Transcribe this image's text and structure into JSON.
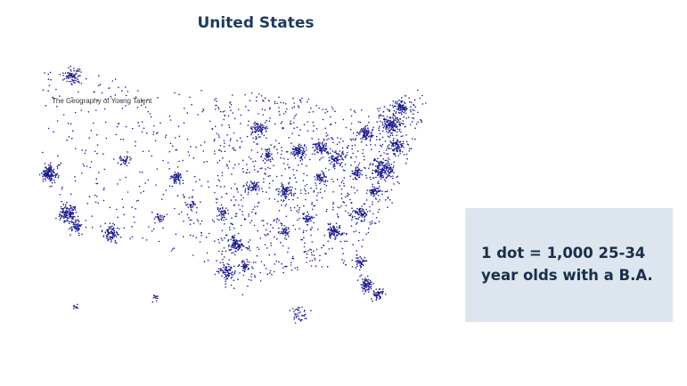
{
  "header": {
    "title": "United States"
  },
  "map": {
    "caption": "The Geography of Young Talent"
  },
  "legend": {
    "text": "1 dot = 1,000 25-34 year olds with a B.A."
  }
}
